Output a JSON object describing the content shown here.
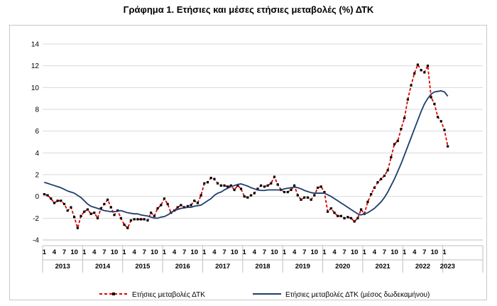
{
  "chart_data": {
    "type": "line",
    "title": "Γράφημα 1. Ετήσιες και μέσες ετήσιες μεταβολές (%) ΔΤΚ",
    "xlabel": "",
    "ylabel": "",
    "ylim": [
      -4,
      14
    ],
    "yticks": [
      -4,
      -2,
      0,
      2,
      4,
      6,
      8,
      10,
      12,
      14
    ],
    "grid": true,
    "legend_position": "bottom",
    "month_tick_labels": [
      "1",
      "4",
      "7",
      "10"
    ],
    "years": [
      "2013",
      "2014",
      "2015",
      "2016",
      "2017",
      "2018",
      "2019",
      "2020",
      "2021",
      "2022",
      "2023"
    ],
    "series": [
      {
        "name": "Ετήσιες μεταβολές ΔΤΚ",
        "color": "#e00000",
        "style": "dashed-with-markers",
        "values": [
          0.2,
          0.1,
          -0.2,
          -0.6,
          -0.4,
          -0.4,
          -0.7,
          -1.3,
          -1.0,
          -1.9,
          -2.9,
          -1.8,
          -1.4,
          -1.2,
          -1.6,
          -1.5,
          -2.0,
          -1.1,
          -0.7,
          -0.3,
          -1.0,
          -1.7,
          -1.3,
          -2.0,
          -2.6,
          -2.9,
          -2.2,
          -2.1,
          -2.1,
          -2.1,
          -2.1,
          -2.2,
          -1.5,
          -1.8,
          -1.1,
          -0.8,
          -0.2,
          -0.7,
          -1.5,
          -1.3,
          -1.0,
          -0.8,
          -1.0,
          -0.9,
          -0.8,
          -0.4,
          -0.6,
          0.1,
          1.2,
          1.3,
          1.7,
          1.6,
          1.2,
          1.0,
          1.0,
          0.9,
          1.0,
          0.6,
          1.0,
          0.7,
          0.0,
          -0.1,
          0.1,
          0.3,
          0.7,
          1.0,
          0.9,
          1.0,
          1.2,
          1.8,
          1.1,
          0.6,
          0.4,
          0.4,
          0.6,
          1.0,
          0.1,
          -0.3,
          -0.1,
          -0.1,
          -0.3,
          0.1,
          0.8,
          0.9,
          0.4,
          -1.4,
          -1.1,
          -1.5,
          -1.8,
          -1.8,
          -2.0,
          -1.9,
          -2.0,
          -2.3,
          -2.0,
          -1.2,
          -1.6,
          -0.5,
          0.2,
          0.8,
          1.3,
          1.6,
          1.9,
          2.4,
          3.6,
          4.8,
          5.1,
          6.2,
          7.2,
          8.9,
          10.2,
          11.3,
          12.1,
          11.6,
          11.4,
          12.0,
          9.1,
          8.5,
          7.3,
          6.9,
          6.1,
          4.6
        ]
      },
      {
        "name": "Ετήσιες μεταβολές ΔΤΚ (μέσος δωδεκαμήνου)",
        "color": "#1f3d6e",
        "style": "solid",
        "values": [
          1.3,
          1.2,
          1.1,
          1.0,
          0.9,
          0.8,
          0.65,
          0.5,
          0.4,
          0.3,
          0.1,
          -0.1,
          -0.4,
          -0.7,
          -0.9,
          -1.0,
          -1.1,
          -1.2,
          -1.3,
          -1.35,
          -1.4,
          -1.4,
          -1.35,
          -1.3,
          -1.4,
          -1.5,
          -1.55,
          -1.6,
          -1.6,
          -1.7,
          -1.75,
          -1.8,
          -1.9,
          -2.0,
          -2.0,
          -1.9,
          -1.85,
          -1.7,
          -1.5,
          -1.3,
          -1.2,
          -1.1,
          -1.05,
          -1.0,
          -1.0,
          -0.9,
          -0.85,
          -0.8,
          -0.6,
          -0.4,
          -0.2,
          0.1,
          0.3,
          0.4,
          0.6,
          0.75,
          0.9,
          1.0,
          1.1,
          1.15,
          1.05,
          0.95,
          0.8,
          0.7,
          0.6,
          0.55,
          0.55,
          0.6,
          0.6,
          0.6,
          0.6,
          0.6,
          0.7,
          0.75,
          0.8,
          0.85,
          0.8,
          0.7,
          0.55,
          0.45,
          0.35,
          0.3,
          0.3,
          0.3,
          0.3,
          0.15,
          0.0,
          -0.2,
          -0.4,
          -0.6,
          -0.8,
          -1.0,
          -1.2,
          -1.4,
          -1.6,
          -1.7,
          -1.6,
          -1.5,
          -1.3,
          -1.1,
          -0.8,
          -0.5,
          -0.1,
          0.4,
          1.0,
          1.6,
          2.3,
          3.0,
          3.8,
          4.6,
          5.4,
          6.2,
          7.0,
          7.8,
          8.5,
          9.0,
          9.4,
          9.6,
          9.65,
          9.7,
          9.6,
          9.2
        ]
      }
    ]
  }
}
